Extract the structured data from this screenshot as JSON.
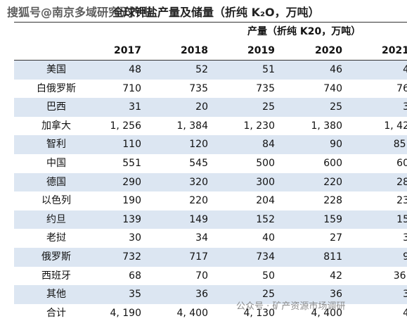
{
  "header": {
    "watermark": "搜狐号@南京多域研究矿产业",
    "title": "全球钾盐产量及储量（折纯 K₂O，万吨）"
  },
  "table": {
    "group_header": "产量（折纯 K20，万吨）",
    "columns": [
      "2017",
      "2018",
      "2019",
      "2020",
      "2021"
    ],
    "rows": [
      [
        "美国",
        "48",
        "52",
        "51",
        "46",
        "4"
      ],
      [
        "白俄罗斯",
        "710",
        "735",
        "735",
        "740",
        "76"
      ],
      [
        "巴西",
        "31",
        "20",
        "25",
        "25",
        "3"
      ],
      [
        "加拿大",
        "1, 256",
        "1, 384",
        "1, 230",
        "1, 380",
        "1, 42"
      ],
      [
        "智利",
        "110",
        "120",
        "84",
        "90",
        "85."
      ],
      [
        "中国",
        "551",
        "545",
        "500",
        "600",
        "60"
      ],
      [
        "德国",
        "290",
        "320",
        "300",
        "220",
        "28"
      ],
      [
        "以色列",
        "190",
        "220",
        "204",
        "228",
        "23"
      ],
      [
        "约旦",
        "139",
        "149",
        "152",
        "159",
        "15"
      ],
      [
        "老挝",
        "30",
        "34",
        "40",
        "27",
        "3"
      ],
      [
        "俄罗斯",
        "732",
        "717",
        "734",
        "811",
        "9"
      ],
      [
        "西班牙",
        "68",
        "70",
        "50",
        "42",
        "36."
      ],
      [
        "其他",
        "35",
        "36",
        "25",
        "36",
        "3"
      ],
      [
        "合计",
        "4, 190",
        "4, 400",
        "4, 130",
        "4, 400",
        "4"
      ]
    ]
  },
  "footer": {
    "watermark": "公众号 · 矿产资源市场调研"
  }
}
